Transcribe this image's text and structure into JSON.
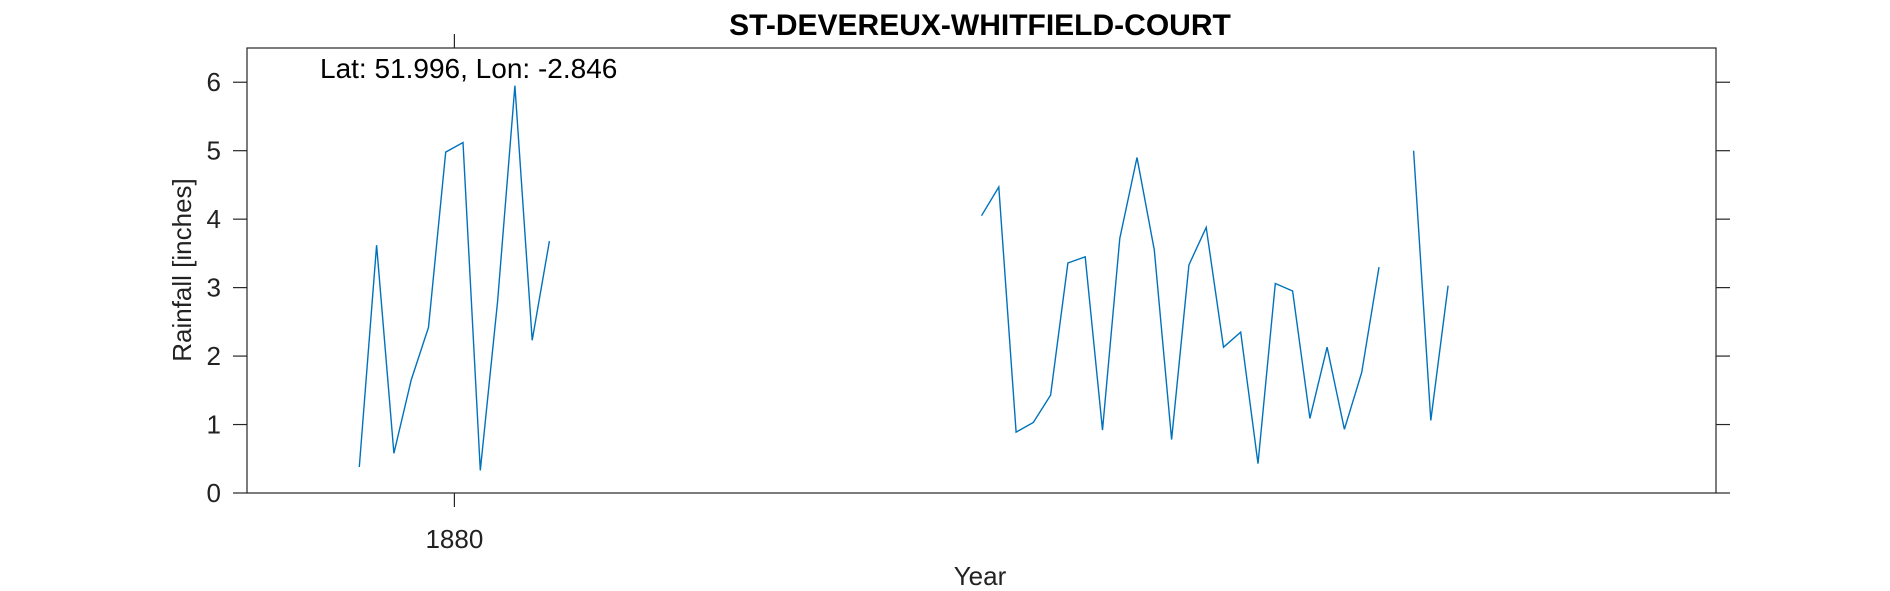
{
  "chart_data": {
    "type": "line",
    "title": "ST-DEVEREUX-WHITFIELD-COURT",
    "xlabel": "Year",
    "ylabel": "Rainfall [inches]",
    "annotation": "Lat: 51.996, Lon: -2.846",
    "xlim": [
      1868,
      1953
    ],
    "ylim": [
      0,
      6.5
    ],
    "xticks": [
      1880
    ],
    "yticks": [
      0,
      1,
      2,
      3,
      4,
      5,
      6
    ],
    "grid": false,
    "legend": "none",
    "line_color": "#0072BD",
    "series": [
      {
        "segments": [
          [
            {
              "x": 1874.5,
              "y": 0.38
            },
            {
              "x": 1875.5,
              "y": 3.62
            },
            {
              "x": 1876.5,
              "y": 0.58
            },
            {
              "x": 1877.5,
              "y": 1.65
            },
            {
              "x": 1878.5,
              "y": 2.42
            },
            {
              "x": 1879.5,
              "y": 4.98
            },
            {
              "x": 1880.5,
              "y": 5.12
            },
            {
              "x": 1881.5,
              "y": 0.33
            },
            {
              "x": 1882.5,
              "y": 2.8
            },
            {
              "x": 1883.5,
              "y": 5.95
            },
            {
              "x": 1884.5,
              "y": 2.23
            },
            {
              "x": 1885.5,
              "y": 3.68
            }
          ],
          [
            {
              "x": 1910.5,
              "y": 4.05
            },
            {
              "x": 1911.5,
              "y": 4.47
            },
            {
              "x": 1912.5,
              "y": 0.89
            },
            {
              "x": 1913.5,
              "y": 1.03
            },
            {
              "x": 1914.5,
              "y": 1.43
            },
            {
              "x": 1915.5,
              "y": 3.36
            },
            {
              "x": 1916.5,
              "y": 3.45
            },
            {
              "x": 1917.5,
              "y": 0.92
            },
            {
              "x": 1918.5,
              "y": 3.72
            },
            {
              "x": 1919.5,
              "y": 4.9
            },
            {
              "x": 1920.5,
              "y": 3.55
            },
            {
              "x": 1921.5,
              "y": 0.78
            },
            {
              "x": 1922.5,
              "y": 3.33
            },
            {
              "x": 1923.5,
              "y": 3.88
            },
            {
              "x": 1924.5,
              "y": 2.13
            },
            {
              "x": 1925.5,
              "y": 2.35
            },
            {
              "x": 1926.5,
              "y": 0.43
            },
            {
              "x": 1927.5,
              "y": 3.06
            },
            {
              "x": 1928.5,
              "y": 2.95
            },
            {
              "x": 1929.5,
              "y": 1.09
            },
            {
              "x": 1930.5,
              "y": 2.13
            },
            {
              "x": 1931.5,
              "y": 0.93
            },
            {
              "x": 1932.5,
              "y": 1.76
            },
            {
              "x": 1933.5,
              "y": 3.3
            }
          ],
          [
            {
              "x": 1935.5,
              "y": 5.0
            },
            {
              "x": 1936.5,
              "y": 1.06
            },
            {
              "x": 1937.5,
              "y": 3.03
            }
          ]
        ]
      }
    ]
  }
}
